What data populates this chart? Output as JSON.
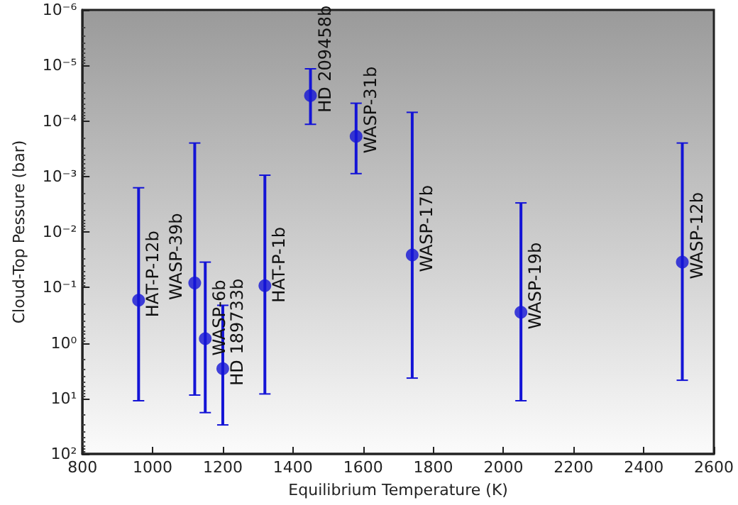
{
  "chart_data": {
    "type": "scatter",
    "xlabel": "Equilibrium Temperature (K)",
    "ylabel": "Cloud-Top Pessure (bar)",
    "x": [
      960,
      1120,
      1150,
      1200,
      1320,
      1450,
      1580,
      1740,
      2050,
      2510
    ],
    "series": [
      {
        "color": "#1414d6",
        "values": [
          0.17,
          0.083,
          0.84,
          2.9,
          0.093,
          3.5e-05,
          0.00019,
          0.026,
          0.28,
          0.035
        ],
        "errors": [
          [
            0.0016,
            11
          ],
          [
            0.00025,
            8.7
          ],
          [
            0.035,
            18
          ],
          [
            0.21,
            30
          ],
          [
            0.00095,
            8.3
          ],
          [
            1.15e-05,
            0.000115
          ],
          [
            4.8e-05,
            0.00089
          ],
          [
            7e-05,
            4.3
          ],
          [
            0.003,
            11
          ],
          [
            0.00025,
            4.7
          ]
        ]
      }
    ],
    "annotations": [
      {
        "text": "HAT-P-12b",
        "x": 960,
        "y": 0.17
      },
      {
        "text": "WASP-39b",
        "x": 1120,
        "y": 0.083
      },
      {
        "text": "WASP-6b",
        "x": 1150,
        "y": 0.84
      },
      {
        "text": "HD 189733b",
        "x": 1200,
        "y": 2.9
      },
      {
        "text": "HAT-P-1b",
        "x": 1320,
        "y": 0.093
      },
      {
        "text": "HD 209458b",
        "x": 1450,
        "y": 3.5e-05
      },
      {
        "text": "WASP-31b",
        "x": 1580,
        "y": 0.00019
      },
      {
        "text": "WASP-17b",
        "x": 1740,
        "y": 0.026
      },
      {
        "text": "WASP-19b",
        "x": 2050,
        "y": 0.28
      },
      {
        "text": "WASP-12b",
        "x": 2510,
        "y": 0.035
      }
    ],
    "xlim": [
      800,
      2600
    ],
    "xticks": [
      800,
      1000,
      1200,
      1400,
      1600,
      1800,
      2000,
      2200,
      2400,
      2600
    ],
    "ylim": [
      100,
      1e-06
    ],
    "log": "y",
    "yticks": [
      {
        "value": 1e-06,
        "label": "10⁻⁶"
      },
      {
        "value": 1e-05,
        "label": "10⁻⁵"
      },
      {
        "value": 0.0001,
        "label": "10⁻⁴"
      },
      {
        "value": 0.001,
        "label": "10⁻³"
      },
      {
        "value": 0.01,
        "label": "10⁻²"
      },
      {
        "value": 0.1,
        "label": "10⁻¹"
      },
      {
        "value": 1,
        "label": "10⁰"
      },
      {
        "value": 10,
        "label": "10¹"
      },
      {
        "value": 100,
        "label": "10²"
      }
    ],
    "marker": "circle",
    "grid": false
  }
}
